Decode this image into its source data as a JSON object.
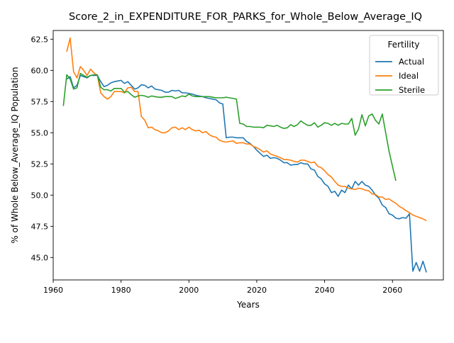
{
  "chart_data": {
    "type": "line",
    "title": "Score_2_in_EXPENDITURE_FOR_PARKS_for_Whole_Below_Average_IQ",
    "xlabel": "Years",
    "ylabel": "% of Whole Below_Average_IQ Population",
    "xlim": [
      1960,
      2075
    ],
    "ylim": [
      43.2,
      63.2
    ],
    "x_ticks": [
      1960,
      1980,
      2000,
      2020,
      2040,
      2060
    ],
    "y_ticks": [
      45.0,
      47.5,
      50.0,
      52.5,
      55.0,
      57.5,
      60.0,
      62.5
    ],
    "grid": false,
    "legend": {
      "title": "Fertility",
      "placement": "top-right"
    },
    "series": [
      {
        "name": "Actual",
        "color": "#1f77b4",
        "points": [
          [
            1964,
            59.3
          ],
          [
            1965,
            59.5
          ],
          [
            1966,
            58.6
          ],
          [
            1967,
            58.8
          ],
          [
            1968,
            59.6
          ],
          [
            1969,
            59.5
          ],
          [
            1970,
            59.4
          ],
          [
            1971,
            59.6
          ],
          [
            1972,
            59.6
          ],
          [
            1973,
            59.6
          ],
          [
            1974,
            59.1
          ],
          [
            1975,
            58.7
          ],
          [
            1976,
            58.8
          ],
          [
            1977,
            59.0
          ],
          [
            1978,
            59.1
          ],
          [
            1979,
            59.15
          ],
          [
            1980,
            59.2
          ],
          [
            1981,
            58.95
          ],
          [
            1982,
            59.1
          ],
          [
            1983,
            58.8
          ],
          [
            1984,
            58.5
          ],
          [
            1985,
            58.6
          ],
          [
            1986,
            58.85
          ],
          [
            1987,
            58.8
          ],
          [
            1988,
            58.6
          ],
          [
            1989,
            58.75
          ],
          [
            1990,
            58.5
          ],
          [
            1991,
            58.45
          ],
          [
            1992,
            58.4
          ],
          [
            1993,
            58.25
          ],
          [
            1994,
            58.25
          ],
          [
            1995,
            58.4
          ],
          [
            1996,
            58.35
          ],
          [
            1997,
            58.4
          ],
          [
            1998,
            58.2
          ],
          [
            1999,
            58.2
          ],
          [
            2000,
            58.15
          ],
          [
            2001,
            58.1
          ],
          [
            2002,
            58.0
          ],
          [
            2003,
            57.95
          ],
          [
            2004,
            57.9
          ],
          [
            2005,
            57.8
          ],
          [
            2006,
            57.75
          ],
          [
            2007,
            57.7
          ],
          [
            2008,
            57.65
          ],
          [
            2009,
            57.4
          ],
          [
            2010,
            57.3
          ],
          [
            2011,
            54.6
          ],
          [
            2012,
            54.65
          ],
          [
            2013,
            54.65
          ],
          [
            2014,
            54.6
          ],
          [
            2015,
            54.6
          ],
          [
            2016,
            54.6
          ],
          [
            2017,
            54.3
          ],
          [
            2018,
            54.15
          ],
          [
            2019,
            53.9
          ],
          [
            2020,
            53.6
          ],
          [
            2021,
            53.35
          ],
          [
            2022,
            53.1
          ],
          [
            2023,
            53.2
          ],
          [
            2024,
            52.95
          ],
          [
            2025,
            53.0
          ],
          [
            2026,
            52.95
          ],
          [
            2027,
            52.8
          ],
          [
            2028,
            52.6
          ],
          [
            2029,
            52.6
          ],
          [
            2030,
            52.4
          ],
          [
            2031,
            52.45
          ],
          [
            2032,
            52.45
          ],
          [
            2033,
            52.6
          ],
          [
            2034,
            52.5
          ],
          [
            2035,
            52.5
          ],
          [
            2036,
            52.1
          ],
          [
            2037,
            52.0
          ],
          [
            2038,
            51.5
          ],
          [
            2039,
            51.3
          ],
          [
            2040,
            50.9
          ],
          [
            2041,
            50.7
          ],
          [
            2042,
            50.2
          ],
          [
            2043,
            50.3
          ],
          [
            2044,
            49.9
          ],
          [
            2045,
            50.4
          ],
          [
            2046,
            50.2
          ],
          [
            2047,
            50.8
          ],
          [
            2048,
            50.5
          ],
          [
            2049,
            51.1
          ],
          [
            2050,
            50.8
          ],
          [
            2051,
            51.1
          ],
          [
            2052,
            50.8
          ],
          [
            2053,
            50.7
          ],
          [
            2054,
            50.4
          ],
          [
            2055,
            50.0
          ],
          [
            2056,
            49.75
          ],
          [
            2057,
            49.2
          ],
          [
            2058,
            49.0
          ],
          [
            2059,
            48.5
          ],
          [
            2060,
            48.4
          ],
          [
            2061,
            48.15
          ],
          [
            2062,
            48.1
          ],
          [
            2063,
            48.2
          ],
          [
            2064,
            48.15
          ],
          [
            2065,
            48.5
          ],
          [
            2066,
            43.9
          ],
          [
            2067,
            44.6
          ],
          [
            2068,
            43.9
          ],
          [
            2069,
            44.7
          ],
          [
            2070,
            43.8
          ]
        ]
      },
      {
        "name": "Ideal",
        "color": "#ff7f0e",
        "points": [
          [
            1964,
            61.5
          ],
          [
            1965,
            62.6
          ],
          [
            1966,
            59.9
          ],
          [
            1967,
            59.4
          ],
          [
            1968,
            60.3
          ],
          [
            1969,
            60.0
          ],
          [
            1970,
            59.6
          ],
          [
            1971,
            60.1
          ],
          [
            1972,
            59.8
          ],
          [
            1973,
            59.6
          ],
          [
            1974,
            58.2
          ],
          [
            1975,
            57.9
          ],
          [
            1976,
            57.7
          ],
          [
            1977,
            57.9
          ],
          [
            1978,
            58.3
          ],
          [
            1979,
            58.3
          ],
          [
            1980,
            58.3
          ],
          [
            1981,
            58.2
          ],
          [
            1982,
            58.6
          ],
          [
            1983,
            58.65
          ],
          [
            1984,
            58.3
          ],
          [
            1985,
            58.3
          ],
          [
            1986,
            56.3
          ],
          [
            1987,
            56.0
          ],
          [
            1988,
            55.4
          ],
          [
            1989,
            55.45
          ],
          [
            1990,
            55.25
          ],
          [
            1991,
            55.15
          ],
          [
            1992,
            55.0
          ],
          [
            1993,
            55.0
          ],
          [
            1994,
            55.15
          ],
          [
            1995,
            55.4
          ],
          [
            1996,
            55.45
          ],
          [
            1997,
            55.25
          ],
          [
            1998,
            55.4
          ],
          [
            1999,
            55.25
          ],
          [
            2000,
            55.45
          ],
          [
            2001,
            55.25
          ],
          [
            2002,
            55.15
          ],
          [
            2003,
            55.2
          ],
          [
            2004,
            55.0
          ],
          [
            2005,
            55.1
          ],
          [
            2006,
            54.85
          ],
          [
            2007,
            54.7
          ],
          [
            2008,
            54.65
          ],
          [
            2009,
            54.4
          ],
          [
            2010,
            54.3
          ],
          [
            2011,
            54.25
          ],
          [
            2012,
            54.3
          ],
          [
            2013,
            54.35
          ],
          [
            2014,
            54.15
          ],
          [
            2015,
            54.2
          ],
          [
            2016,
            54.2
          ],
          [
            2017,
            54.1
          ],
          [
            2018,
            54.1
          ],
          [
            2019,
            53.9
          ],
          [
            2020,
            53.8
          ],
          [
            2021,
            53.65
          ],
          [
            2022,
            53.45
          ],
          [
            2023,
            53.55
          ],
          [
            2024,
            53.3
          ],
          [
            2025,
            53.2
          ],
          [
            2026,
            53.1
          ],
          [
            2027,
            53.0
          ],
          [
            2028,
            52.85
          ],
          [
            2029,
            52.85
          ],
          [
            2030,
            52.8
          ],
          [
            2031,
            52.7
          ],
          [
            2032,
            52.65
          ],
          [
            2033,
            52.8
          ],
          [
            2034,
            52.8
          ],
          [
            2035,
            52.7
          ],
          [
            2036,
            52.6
          ],
          [
            2037,
            52.65
          ],
          [
            2038,
            52.3
          ],
          [
            2039,
            52.2
          ],
          [
            2040,
            51.95
          ],
          [
            2041,
            51.65
          ],
          [
            2042,
            51.45
          ],
          [
            2043,
            51.1
          ],
          [
            2044,
            50.8
          ],
          [
            2045,
            50.7
          ],
          [
            2046,
            50.7
          ],
          [
            2047,
            50.55
          ],
          [
            2048,
            50.5
          ],
          [
            2049,
            50.45
          ],
          [
            2050,
            50.55
          ],
          [
            2051,
            50.5
          ],
          [
            2052,
            50.4
          ],
          [
            2053,
            50.35
          ],
          [
            2054,
            50.1
          ],
          [
            2055,
            50.05
          ],
          [
            2056,
            49.85
          ],
          [
            2057,
            49.85
          ],
          [
            2058,
            49.65
          ],
          [
            2059,
            49.7
          ],
          [
            2060,
            49.5
          ],
          [
            2061,
            49.35
          ],
          [
            2062,
            49.1
          ],
          [
            2063,
            48.95
          ],
          [
            2064,
            48.75
          ],
          [
            2065,
            48.6
          ],
          [
            2066,
            48.4
          ],
          [
            2067,
            48.3
          ],
          [
            2068,
            48.2
          ],
          [
            2069,
            48.1
          ],
          [
            2070,
            47.95
          ]
        ]
      },
      {
        "name": "Sterile",
        "color": "#2ca02c",
        "points": [
          [
            1963,
            57.15
          ],
          [
            1964,
            59.65
          ],
          [
            1965,
            59.3
          ],
          [
            1966,
            58.5
          ],
          [
            1967,
            58.6
          ],
          [
            1968,
            59.75
          ],
          [
            1969,
            59.6
          ],
          [
            1970,
            59.45
          ],
          [
            1971,
            59.6
          ],
          [
            1972,
            59.65
          ],
          [
            1973,
            59.65
          ],
          [
            1974,
            58.65
          ],
          [
            1975,
            58.45
          ],
          [
            1976,
            58.45
          ],
          [
            1977,
            58.35
          ],
          [
            1978,
            58.55
          ],
          [
            1979,
            58.55
          ],
          [
            1980,
            58.55
          ],
          [
            1981,
            58.25
          ],
          [
            1982,
            58.3
          ],
          [
            1983,
            58.05
          ],
          [
            1984,
            57.85
          ],
          [
            1985,
            57.95
          ],
          [
            1986,
            58.0
          ],
          [
            1987,
            57.95
          ],
          [
            1988,
            57.85
          ],
          [
            1989,
            57.95
          ],
          [
            1990,
            57.9
          ],
          [
            1991,
            57.85
          ],
          [
            1992,
            57.85
          ],
          [
            1993,
            57.9
          ],
          [
            1994,
            57.9
          ],
          [
            1995,
            57.9
          ],
          [
            1996,
            57.75
          ],
          [
            1997,
            57.85
          ],
          [
            1998,
            57.95
          ],
          [
            1999,
            57.9
          ],
          [
            2000,
            58.1
          ],
          [
            2001,
            57.95
          ],
          [
            2002,
            57.9
          ],
          [
            2003,
            57.9
          ],
          [
            2004,
            57.9
          ],
          [
            2005,
            57.9
          ],
          [
            2006,
            57.9
          ],
          [
            2007,
            57.85
          ],
          [
            2008,
            57.8
          ],
          [
            2009,
            57.8
          ],
          [
            2010,
            57.8
          ],
          [
            2011,
            57.85
          ],
          [
            2012,
            57.8
          ],
          [
            2013,
            57.75
          ],
          [
            2014,
            57.7
          ],
          [
            2015,
            55.75
          ],
          [
            2016,
            55.7
          ],
          [
            2017,
            55.5
          ],
          [
            2018,
            55.5
          ],
          [
            2019,
            55.45
          ],
          [
            2020,
            55.45
          ],
          [
            2021,
            55.45
          ],
          [
            2022,
            55.4
          ],
          [
            2023,
            55.6
          ],
          [
            2024,
            55.55
          ],
          [
            2025,
            55.5
          ],
          [
            2026,
            55.6
          ],
          [
            2027,
            55.45
          ],
          [
            2028,
            55.35
          ],
          [
            2029,
            55.4
          ],
          [
            2030,
            55.65
          ],
          [
            2031,
            55.5
          ],
          [
            2032,
            55.65
          ],
          [
            2033,
            55.95
          ],
          [
            2034,
            55.75
          ],
          [
            2035,
            55.6
          ],
          [
            2036,
            55.6
          ],
          [
            2037,
            55.8
          ],
          [
            2038,
            55.45
          ],
          [
            2039,
            55.6
          ],
          [
            2040,
            55.8
          ],
          [
            2041,
            55.75
          ],
          [
            2042,
            55.6
          ],
          [
            2043,
            55.75
          ],
          [
            2044,
            55.6
          ],
          [
            2045,
            55.75
          ],
          [
            2046,
            55.7
          ],
          [
            2047,
            55.7
          ],
          [
            2048,
            56.15
          ],
          [
            2049,
            54.8
          ],
          [
            2050,
            55.3
          ],
          [
            2051,
            56.45
          ],
          [
            2052,
            55.55
          ],
          [
            2053,
            56.35
          ],
          [
            2054,
            56.5
          ],
          [
            2055,
            56.0
          ],
          [
            2056,
            55.7
          ],
          [
            2057,
            56.5
          ],
          [
            2058,
            55.0
          ],
          [
            2059,
            53.5
          ],
          [
            2060,
            52.3
          ],
          [
            2061,
            51.15
          ]
        ]
      }
    ]
  }
}
